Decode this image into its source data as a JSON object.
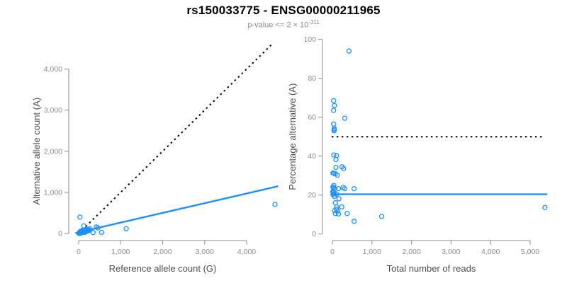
{
  "page": {
    "title": "rs150033775 - ENSG00000211965",
    "subtitle_prefix": "p-value <= 2 × 10",
    "subtitle_exponent": "-311"
  },
  "colors": {
    "point_blue": "#1E90FF",
    "line_blue": "#1E90FF",
    "identity_black": "#000000",
    "axis_gray": "#8c8c8c",
    "tick_label_gray": "#8c8c8c",
    "axis_title_gray": "#4d4d4d",
    "title_black": "#000000",
    "subtitle_gray": "#8c8c8c",
    "background": "#ffffff"
  },
  "chart_data": [
    {
      "type": "scatter",
      "panel": "left",
      "xlabel": "Reference allele count (G)",
      "ylabel": "Alternative allele count (A)",
      "xlim": [
        0,
        4750
      ],
      "ylim": [
        0,
        4750
      ],
      "grid": false,
      "legend": null,
      "xticks": [
        0,
        1000,
        2000,
        3000,
        4000
      ],
      "xtick_labels": [
        "0",
        "1,000",
        "2,000",
        "3,000",
        "4,000"
      ],
      "yticks": [
        0,
        1000,
        2000,
        3000,
        4000
      ],
      "ytick_labels": [
        "0",
        "1,000",
        "2,000",
        "3,000",
        "4,000"
      ],
      "lines": [
        {
          "name": "identity-line",
          "style": "dotted",
          "color": "#000000",
          "points": [
            [
              0,
              0
            ],
            [
              4640,
              4640
            ]
          ]
        },
        {
          "name": "regression-line",
          "style": "solid",
          "color": "#1E90FF",
          "points": [
            [
              -80,
              10
            ],
            [
              4750,
              1150
            ]
          ]
        }
      ],
      "points": [
        [
          30,
          400
        ],
        [
          120,
          185
        ],
        [
          208,
          100
        ],
        [
          264,
          115
        ],
        [
          345,
          22
        ],
        [
          420,
          158
        ],
        [
          455,
          135
        ],
        [
          545,
          25
        ],
        [
          1130,
          115
        ],
        [
          4675,
          705
        ],
        [
          8,
          4
        ],
        [
          12,
          10
        ],
        [
          18,
          6
        ],
        [
          22,
          14
        ],
        [
          28,
          8
        ],
        [
          32,
          18
        ],
        [
          38,
          12
        ],
        [
          42,
          24
        ],
        [
          48,
          16
        ],
        [
          52,
          30
        ],
        [
          58,
          20
        ],
        [
          65,
          36
        ],
        [
          72,
          26
        ],
        [
          78,
          44
        ],
        [
          85,
          32
        ],
        [
          92,
          52
        ],
        [
          98,
          40
        ],
        [
          105,
          58
        ],
        [
          112,
          46
        ],
        [
          120,
          62
        ],
        [
          128,
          38
        ],
        [
          135,
          52
        ],
        [
          145,
          65
        ],
        [
          155,
          48
        ],
        [
          165,
          70
        ],
        [
          175,
          56
        ],
        [
          185,
          74
        ],
        [
          195,
          60
        ],
        [
          205,
          78
        ],
        [
          215,
          64
        ],
        [
          228,
          80
        ],
        [
          240,
          68
        ],
        [
          252,
          84
        ],
        [
          150,
          28
        ],
        [
          90,
          75
        ],
        [
          60,
          60
        ],
        [
          40,
          48
        ],
        [
          25,
          35
        ],
        [
          5,
          3
        ],
        [
          10,
          6
        ],
        [
          14,
          12
        ],
        [
          16,
          4
        ],
        [
          20,
          9
        ],
        [
          24,
          16
        ],
        [
          26,
          6
        ],
        [
          30,
          13
        ],
        [
          34,
          20
        ],
        [
          36,
          8
        ],
        [
          44,
          18
        ],
        [
          46,
          10
        ],
        [
          50,
          24
        ],
        [
          56,
          14
        ],
        [
          62,
          28
        ],
        [
          68,
          18
        ],
        [
          74,
          34
        ],
        [
          80,
          24
        ],
        [
          88,
          42
        ],
        [
          96,
          30
        ],
        [
          104,
          48
        ],
        [
          110,
          36
        ],
        [
          118,
          52
        ],
        [
          126,
          44
        ],
        [
          134,
          58
        ],
        [
          142,
          48
        ],
        [
          150,
          62
        ],
        [
          158,
          52
        ]
      ]
    },
    {
      "type": "scatter",
      "panel": "right",
      "xlabel": "Total number of reads",
      "ylabel": "Percentage alternative (A)",
      "xlim": [
        0,
        5500
      ],
      "ylim": [
        0,
        100
      ],
      "grid": false,
      "legend": null,
      "xticks": [
        0,
        1000,
        2000,
        3000,
        4000,
        5000
      ],
      "xtick_labels": [
        "0",
        "1,000",
        "2,000",
        "3,000",
        "4,000",
        "5,000"
      ],
      "yticks": [
        0,
        20,
        40,
        60,
        80,
        100
      ],
      "ytick_labels": [
        "0",
        "20",
        "40",
        "60",
        "80",
        "100"
      ],
      "lines": [
        {
          "name": "fifty-percent-line",
          "style": "dotted",
          "color": "#000000",
          "points": [
            [
              -20,
              50
            ],
            [
              5340,
              50
            ]
          ]
        },
        {
          "name": "mean-percentage-line",
          "style": "solid",
          "color": "#1E90FF",
          "points": [
            [
              -20,
              20.4
            ],
            [
              5430,
              20.4
            ]
          ]
        }
      ],
      "points": [
        [
          420,
          94
        ],
        [
          30,
          68.5
        ],
        [
          50,
          66
        ],
        [
          30,
          63.5
        ],
        [
          313,
          59.5
        ],
        [
          30,
          56.5
        ],
        [
          45,
          54.2
        ],
        [
          52,
          53.6
        ],
        [
          42,
          53
        ],
        [
          35,
          40.6
        ],
        [
          106,
          40.3
        ],
        [
          88,
          38.2
        ],
        [
          88,
          34.2
        ],
        [
          242,
          34.5
        ],
        [
          283,
          33.6
        ],
        [
          15,
          31.3
        ],
        [
          35,
          31.1
        ],
        [
          76,
          30.9
        ],
        [
          124,
          30.2
        ],
        [
          35,
          24.9
        ],
        [
          12,
          24.2
        ],
        [
          25,
          23.6
        ],
        [
          58,
          23.3
        ],
        [
          154,
          23.3
        ],
        [
          271,
          23.9
        ],
        [
          313,
          23.3
        ],
        [
          549,
          23.3
        ],
        [
          10,
          21.8
        ],
        [
          22,
          21.2
        ],
        [
          30,
          20.6
        ],
        [
          15,
          20.2
        ],
        [
          40,
          21.5
        ],
        [
          106,
          20.5
        ],
        [
          48,
          19.3
        ],
        [
          165,
          18.1
        ],
        [
          76,
          16
        ],
        [
          106,
          13.9
        ],
        [
          236,
          13.9
        ],
        [
          106,
          12.7
        ],
        [
          58,
          12
        ],
        [
          136,
          11.8
        ],
        [
          76,
          10.5
        ],
        [
          154,
          10.3
        ],
        [
          372,
          10.5
        ],
        [
          549,
          6.5
        ],
        [
          1244,
          9
        ],
        [
          5375,
          13.6
        ]
      ]
    }
  ]
}
